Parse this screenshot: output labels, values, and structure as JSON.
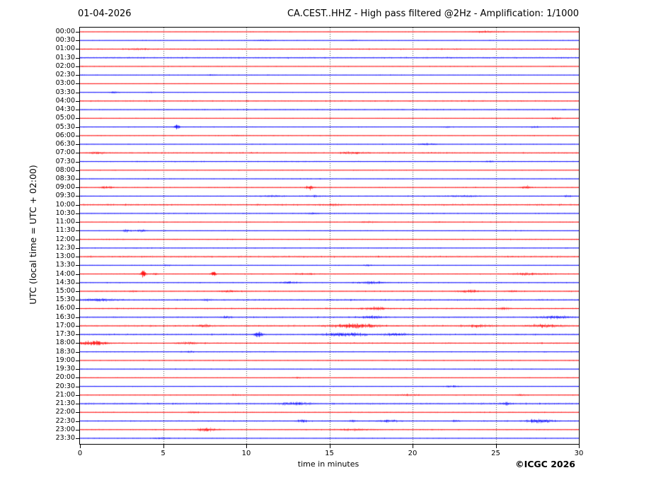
{
  "header": {
    "date": "01-04-2026",
    "title": "CA.CEST..HHZ - High pass filtered @2Hz - Amplification: 1/1000"
  },
  "footer": {
    "copyright": "©ICGC 2026"
  },
  "colors": {
    "red": "#ff0000",
    "blue": "#0000ff",
    "grid": "#4a4a4a",
    "frame": "#000000"
  },
  "chart_data": {
    "type": "line",
    "title": "CA.CEST..HHZ - High pass filtered @2Hz - Amplification: 1/1000",
    "xlabel": "time in minutes",
    "ylabel": "UTC (local time = UTC + 02:00)",
    "x_range": [
      0,
      30
    ],
    "x_ticks": [
      0,
      5,
      10,
      15,
      20,
      25,
      30
    ],
    "grid_minutes": [
      5,
      10,
      15,
      20,
      25
    ],
    "grid": "vertical-dotted",
    "legend": "none",
    "layout": {
      "row0": 6,
      "dy": 12.234
    },
    "rows": [
      {
        "time": "00:00",
        "color": "red",
        "noise": 0.45,
        "events": [
          [
            24.4,
            0.9,
            1.2
          ]
        ]
      },
      {
        "time": "00:30",
        "color": "blue",
        "noise": 0.45,
        "events": [
          [
            11.0,
            0.7,
            0.8
          ],
          [
            16.4,
            0.6,
            0.5
          ]
        ]
      },
      {
        "time": "01:00",
        "color": "red",
        "noise": 0.75,
        "events": [
          [
            3.5,
            0.6,
            1.0
          ]
        ]
      },
      {
        "time": "01:30",
        "color": "blue",
        "noise": 0.95,
        "events": []
      },
      {
        "time": "02:00",
        "color": "red",
        "noise": 0.55,
        "events": []
      },
      {
        "time": "02:30",
        "color": "blue",
        "noise": 0.5,
        "events": [
          [
            8.0,
            0.5,
            0.5
          ]
        ]
      },
      {
        "time": "03:00",
        "color": "red",
        "noise": 0.45,
        "events": []
      },
      {
        "time": "03:30",
        "color": "blue",
        "noise": 0.45,
        "events": [
          [
            2.0,
            0.9,
            0.4
          ],
          [
            4.2,
            0.6,
            0.3
          ]
        ]
      },
      {
        "time": "04:00",
        "color": "red",
        "noise": 0.8,
        "events": []
      },
      {
        "time": "04:30",
        "color": "blue",
        "noise": 0.65,
        "events": []
      },
      {
        "time": "05:00",
        "color": "red",
        "noise": 0.5,
        "events": [
          [
            28.6,
            1.0,
            0.4
          ]
        ]
      },
      {
        "time": "05:30",
        "color": "blue",
        "noise": 0.55,
        "events": [
          [
            5.8,
            1.9,
            0.3
          ],
          [
            22.0,
            0.7,
            0.4
          ],
          [
            27.3,
            0.9,
            0.4
          ]
        ]
      },
      {
        "time": "06:00",
        "color": "red",
        "noise": 0.55,
        "events": [
          [
            9.4,
            0.6,
            0.5
          ]
        ]
      },
      {
        "time": "06:30",
        "color": "blue",
        "noise": 0.5,
        "events": [
          [
            20.8,
            0.8,
            0.9
          ]
        ]
      },
      {
        "time": "07:00",
        "color": "red",
        "noise": 0.85,
        "events": [
          [
            1.0,
            0.9,
            0.8
          ],
          [
            16.4,
            0.8,
            1.0
          ]
        ]
      },
      {
        "time": "07:30",
        "color": "blue",
        "noise": 0.65,
        "events": [
          [
            24.6,
            0.7,
            0.5
          ]
        ]
      },
      {
        "time": "08:00",
        "color": "red",
        "noise": 0.5,
        "events": []
      },
      {
        "time": "08:30",
        "color": "blue",
        "noise": 0.55,
        "events": []
      },
      {
        "time": "09:00",
        "color": "red",
        "noise": 0.55,
        "events": [
          [
            1.6,
            1.1,
            0.6
          ],
          [
            13.8,
            2.0,
            0.35
          ],
          [
            26.8,
            1.4,
            0.5
          ]
        ]
      },
      {
        "time": "09:30",
        "color": "blue",
        "noise": 0.65,
        "events": [
          [
            11.5,
            0.7,
            1.0
          ],
          [
            14.0,
            0.7,
            0.8
          ],
          [
            23.0,
            0.7,
            1.5
          ],
          [
            29.3,
            0.9,
            0.4
          ]
        ]
      },
      {
        "time": "10:00",
        "color": "red",
        "noise": 1.05,
        "events": [
          [
            15.2,
            0.7,
            0.6
          ]
        ]
      },
      {
        "time": "10:30",
        "color": "blue",
        "noise": 0.65,
        "events": [
          [
            14.0,
            0.8,
            0.6
          ]
        ]
      },
      {
        "time": "11:00",
        "color": "red",
        "noise": 0.55,
        "events": [
          [
            17.3,
            0.7,
            0.6
          ],
          [
            21.5,
            0.5,
            0.5
          ]
        ]
      },
      {
        "time": "11:30",
        "color": "blue",
        "noise": 0.55,
        "events": [
          [
            2.8,
            1.3,
            0.35
          ],
          [
            3.7,
            1.3,
            0.35
          ]
        ]
      },
      {
        "time": "12:00",
        "color": "red",
        "noise": 0.65,
        "events": []
      },
      {
        "time": "12:30",
        "color": "blue",
        "noise": 0.6,
        "events": []
      },
      {
        "time": "13:00",
        "color": "red",
        "noise": 1.05,
        "events": []
      },
      {
        "time": "13:30",
        "color": "blue",
        "noise": 0.5,
        "events": [
          [
            5.2,
            0.9,
            0.3
          ],
          [
            17.3,
            0.9,
            0.3
          ]
        ]
      },
      {
        "time": "14:00",
        "color": "red",
        "noise": 0.6,
        "events": [
          [
            3.8,
            3.2,
            0.22
          ],
          [
            4.5,
            0.9,
            0.3
          ],
          [
            8.0,
            3.2,
            0.2
          ],
          [
            13.5,
            0.7,
            1.0
          ],
          [
            27.0,
            1.1,
            1.6
          ]
        ]
      },
      {
        "time": "14:30",
        "color": "blue",
        "noise": 0.65,
        "events": [
          [
            12.6,
            1.0,
            0.8
          ],
          [
            17.6,
            1.1,
            1.2
          ]
        ]
      },
      {
        "time": "15:00",
        "color": "red",
        "noise": 0.75,
        "events": [
          [
            3.1,
            0.8,
            0.3
          ],
          [
            9.0,
            0.9,
            0.8
          ],
          [
            23.3,
            0.9,
            1.2
          ],
          [
            26.0,
            0.7,
            0.5
          ]
        ]
      },
      {
        "time": "15:30",
        "color": "blue",
        "noise": 0.95,
        "events": [
          [
            1.0,
            1.0,
            1.5
          ],
          [
            7.6,
            0.9,
            0.3
          ]
        ]
      },
      {
        "time": "16:00",
        "color": "red",
        "noise": 0.85,
        "events": [
          [
            17.8,
            1.1,
            1.2
          ],
          [
            25.5,
            0.9,
            0.5
          ]
        ]
      },
      {
        "time": "16:30",
        "color": "blue",
        "noise": 0.85,
        "events": [
          [
            8.8,
            0.9,
            0.5
          ],
          [
            17.5,
            1.2,
            1.0
          ],
          [
            28.5,
            1.1,
            1.5
          ]
        ]
      },
      {
        "time": "17:00",
        "color": "red",
        "noise": 1.05,
        "events": [
          [
            7.5,
            1.1,
            0.5
          ],
          [
            16.5,
            1.7,
            2.0
          ],
          [
            24.0,
            0.9,
            1.0
          ],
          [
            28.0,
            1.1,
            1.5
          ]
        ]
      },
      {
        "time": "17:30",
        "color": "blue",
        "noise": 0.95,
        "events": [
          [
            10.7,
            2.3,
            0.4
          ],
          [
            16.0,
            1.3,
            2.0
          ],
          [
            19.0,
            1.1,
            1.0
          ]
        ]
      },
      {
        "time": "18:00",
        "color": "red",
        "noise": 0.85,
        "events": [
          [
            0.8,
            1.9,
            1.2
          ],
          [
            6.5,
            1.1,
            0.8
          ]
        ]
      },
      {
        "time": "18:30",
        "color": "blue",
        "noise": 0.65,
        "events": [
          [
            6.6,
            0.9,
            0.3
          ]
        ]
      },
      {
        "time": "19:00",
        "color": "red",
        "noise": 0.55,
        "events": []
      },
      {
        "time": "19:30",
        "color": "blue",
        "noise": 0.5,
        "events": []
      },
      {
        "time": "20:00",
        "color": "red",
        "noise": 0.55,
        "events": [
          [
            13.0,
            0.6,
            0.4
          ]
        ]
      },
      {
        "time": "20:30",
        "color": "blue",
        "noise": 0.5,
        "events": [
          [
            22.3,
            0.7,
            0.6
          ]
        ]
      },
      {
        "time": "21:00",
        "color": "red",
        "noise": 0.6,
        "events": [
          [
            9.3,
            0.6,
            0.3
          ],
          [
            19.8,
            0.7,
            1.0
          ],
          [
            26.5,
            0.8,
            0.4
          ]
        ]
      },
      {
        "time": "21:30",
        "color": "blue",
        "noise": 1.05,
        "events": [
          [
            13.0,
            1.1,
            1.2
          ],
          [
            25.6,
            1.3,
            0.4
          ]
        ]
      },
      {
        "time": "22:00",
        "color": "red",
        "noise": 0.65,
        "events": [
          [
            6.8,
            0.9,
            0.4
          ]
        ]
      },
      {
        "time": "22:30",
        "color": "blue",
        "noise": 0.75,
        "events": [
          [
            13.3,
            1.2,
            0.5
          ],
          [
            16.4,
            0.9,
            0.4
          ],
          [
            18.5,
            0.9,
            1.0
          ],
          [
            22.6,
            0.9,
            0.3
          ],
          [
            27.6,
            1.7,
            1.2
          ]
        ]
      },
      {
        "time": "23:00",
        "color": "red",
        "noise": 0.65,
        "events": [
          [
            7.6,
            1.5,
            0.9
          ],
          [
            16.5,
            0.9,
            1.5
          ]
        ]
      },
      {
        "time": "23:30",
        "color": "blue",
        "noise": 0.55,
        "events": [
          [
            5.0,
            0.7,
            0.6
          ]
        ]
      }
    ]
  }
}
